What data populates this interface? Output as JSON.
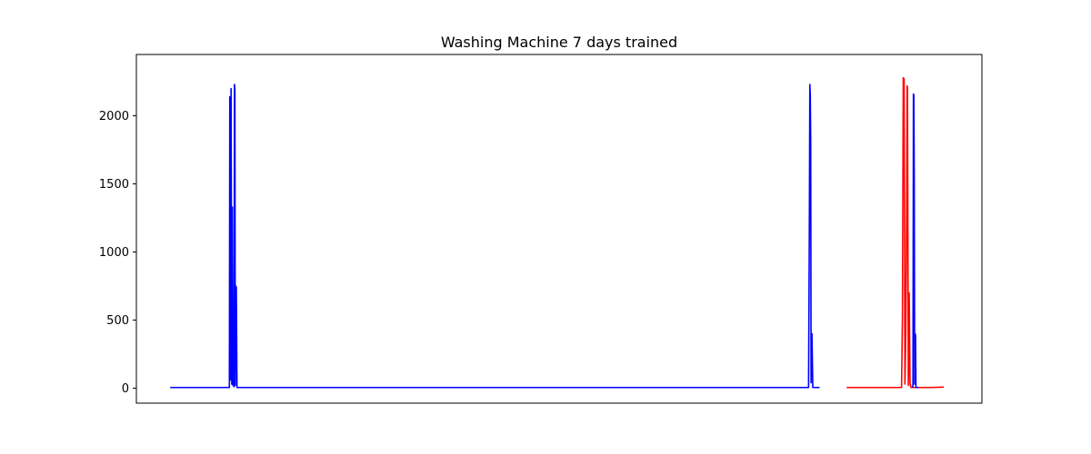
{
  "chart_data": {
    "type": "line",
    "title": "Washing Machine 7 days trained",
    "xlabel": "",
    "ylabel": "",
    "x_ticks_shown": false,
    "xlim": [
      -0.4,
      9.6
    ],
    "ylim": [
      -110,
      2450
    ],
    "y_ticks": [
      0,
      500,
      1000,
      1500,
      2000
    ],
    "grid": false,
    "legend": "none",
    "series": [
      {
        "color": "#0000ff",
        "points": [
          [
            0.0,
            5
          ],
          [
            0.7,
            5
          ],
          [
            0.705,
            2140
          ],
          [
            0.712,
            60
          ],
          [
            0.72,
            2200
          ],
          [
            0.728,
            30
          ],
          [
            0.735,
            1330
          ],
          [
            0.742,
            20
          ],
          [
            0.75,
            410
          ],
          [
            0.755,
            10
          ],
          [
            0.76,
            2230
          ],
          [
            0.765,
            2190
          ],
          [
            0.77,
            20
          ],
          [
            0.775,
            750
          ],
          [
            0.782,
            740
          ],
          [
            0.79,
            5
          ],
          [
            7.55,
            5
          ],
          [
            7.56,
            1280
          ],
          [
            7.565,
            2230
          ],
          [
            7.57,
            2160
          ],
          [
            7.575,
            1830
          ],
          [
            7.58,
            40
          ],
          [
            7.585,
            400
          ],
          [
            7.59,
            400
          ],
          [
            7.6,
            5
          ],
          [
            7.68,
            5
          ]
        ]
      },
      {
        "color": "#ff0000",
        "points": [
          [
            8.0,
            5
          ],
          [
            8.65,
            5
          ],
          [
            8.66,
            500
          ],
          [
            8.67,
            2280
          ],
          [
            8.68,
            2270
          ],
          [
            8.69,
            30
          ],
          [
            8.7,
            400
          ],
          [
            8.71,
            1270
          ],
          [
            8.715,
            2220
          ],
          [
            8.72,
            2200
          ],
          [
            8.73,
            20
          ],
          [
            8.74,
            700
          ],
          [
            8.75,
            40
          ],
          [
            8.76,
            5
          ],
          [
            9.0,
            5
          ],
          [
            9.15,
            8
          ]
        ]
      },
      {
        "color": "#0000ff",
        "points": [
          [
            8.78,
            5
          ],
          [
            8.785,
            30
          ],
          [
            8.79,
            2160
          ],
          [
            8.795,
            2150
          ],
          [
            8.8,
            1550
          ],
          [
            8.805,
            30
          ],
          [
            8.81,
            400
          ],
          [
            8.815,
            390
          ],
          [
            8.82,
            5
          ],
          [
            8.85,
            5
          ]
        ]
      }
    ]
  }
}
